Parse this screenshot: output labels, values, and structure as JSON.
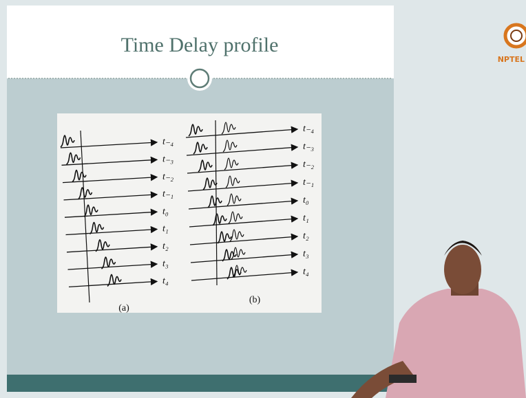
{
  "slide": {
    "title": "Time Delay profile",
    "figure": {
      "panel_a": {
        "labels": [
          "t₋₄",
          "t₋₃",
          "t₋₂",
          "t₋₁",
          "t₀",
          "t₁",
          "t₂",
          "t₃",
          "t₄"
        ],
        "caption": "(a)"
      },
      "panel_b": {
        "labels": [
          "t₋₄",
          "t₋₃",
          "t₋₂",
          "t₋₁",
          "t₀",
          "t₁",
          "t₂",
          "t₃",
          "t₄"
        ],
        "caption": "(b)"
      }
    }
  },
  "logo": {
    "text": "NPTEL"
  }
}
